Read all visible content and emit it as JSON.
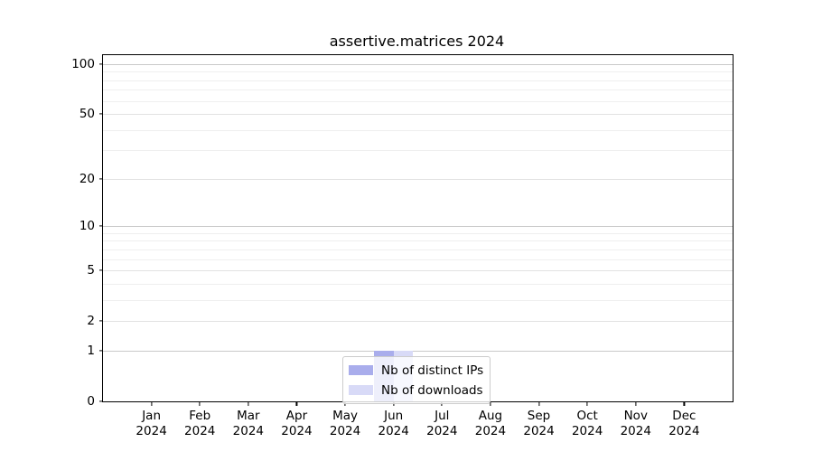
{
  "title": "assertive.matrices 2024",
  "chart_data": {
    "type": "bar",
    "title": "assertive.matrices 2024",
    "categories": [
      "Jan",
      "Feb",
      "Mar",
      "Apr",
      "May",
      "Jun",
      "Jul",
      "Aug",
      "Sep",
      "Oct",
      "Nov",
      "Dec"
    ],
    "year_label": "2024",
    "series": [
      {
        "name": "Nb of distinct IPs",
        "color": "#a9adec",
        "values": [
          0,
          0,
          0,
          0,
          0,
          1,
          0,
          0,
          0,
          0,
          0,
          0
        ]
      },
      {
        "name": "Nb of downloads",
        "color": "#d8daf7",
        "values": [
          0,
          0,
          0,
          0,
          0,
          1,
          0,
          0,
          0,
          0,
          0,
          0
        ]
      }
    ],
    "yscale": "log1p",
    "ylim": [
      0,
      113
    ],
    "yticks": [
      0,
      1,
      2,
      5,
      10,
      20,
      50,
      100
    ],
    "yticks_minor": [
      3,
      4,
      6,
      7,
      8,
      9,
      30,
      40,
      60,
      70,
      80,
      90
    ],
    "grid": true,
    "legend_position": "lower center"
  },
  "style": {
    "grid_decade_color": "#c9c9c9",
    "grid_mid_color": "#e2e2e2",
    "grid_minor_color": "#efefef",
    "spine_color": "#000000",
    "background": "#ffffff"
  }
}
